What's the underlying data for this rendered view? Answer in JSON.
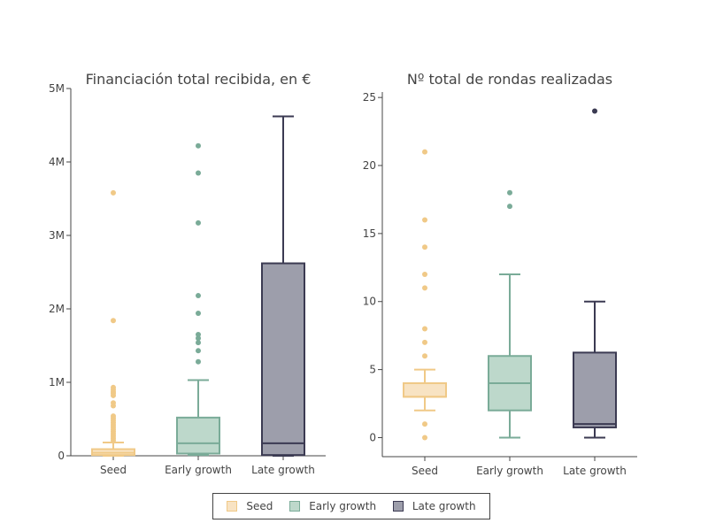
{
  "chart_data": [
    {
      "type": "box",
      "title": "Financiación total recibida, en €",
      "categories": [
        "Seed",
        "Early growth",
        "Late growth"
      ],
      "ylim": [
        0,
        5000000
      ],
      "yticks": [
        0,
        1000000,
        2000000,
        3000000,
        4000000,
        5000000
      ],
      "ytick_labels": [
        "0",
        "1M",
        "2M",
        "3M",
        "4M",
        "5M"
      ],
      "series": [
        {
          "name": "Seed",
          "stats": {
            "min": 0,
            "q1": 10000,
            "median": 40000,
            "q3": 90000,
            "max": 180000
          },
          "outliers": [
            3580000,
            1840000,
            930000,
            900000,
            870000,
            850000,
            820000,
            720000,
            680000,
            540000,
            510000,
            480000,
            450000,
            420000,
            390000,
            360000,
            330000,
            300000,
            270000,
            240000,
            210000
          ]
        },
        {
          "name": "Early growth",
          "stats": {
            "min": 10000,
            "q1": 30000,
            "median": 170000,
            "q3": 520000,
            "max": 1030000
          },
          "outliers": [
            4220000,
            3850000,
            3170000,
            2180000,
            1940000,
            1650000,
            1600000,
            1540000,
            1430000,
            1280000
          ]
        },
        {
          "name": "Late growth",
          "stats": {
            "min": 0,
            "q1": 10000,
            "median": 170000,
            "q3": 2620000,
            "max": 4620000
          },
          "outliers": []
        }
      ]
    },
    {
      "type": "box",
      "title": "Nº total de rondas realizadas",
      "categories": [
        "Seed",
        "Early growth",
        "Late growth"
      ],
      "ylim": [
        -1.4,
        25.4
      ],
      "yticks": [
        0,
        5,
        10,
        15,
        20,
        25
      ],
      "ytick_labels": [
        "0",
        "5",
        "10",
        "15",
        "20",
        "25"
      ],
      "series": [
        {
          "name": "Seed",
          "stats": {
            "min": 2,
            "q1": 3,
            "median": 3,
            "q3": 4,
            "max": 5
          },
          "outliers": [
            21,
            16,
            14,
            12,
            11,
            8,
            7,
            6,
            1,
            0
          ]
        },
        {
          "name": "Early growth",
          "stats": {
            "min": 0,
            "q1": 2,
            "median": 4,
            "q3": 6,
            "max": 12
          },
          "outliers": [
            18,
            17
          ]
        },
        {
          "name": "Late growth",
          "stats": {
            "min": 0,
            "q1": 0.75,
            "median": 1,
            "q3": 6.25,
            "max": 10
          },
          "outliers": [
            24
          ]
        }
      ]
    }
  ],
  "colors": {
    "Seed": {
      "fill": "#f8e3c3",
      "line": "#f0c987"
    },
    "Early growth": {
      "fill": "#bdd8cb",
      "line": "#7aab98"
    },
    "Late growth": {
      "fill": "#9d9eab",
      "line": "#3b3a52"
    }
  },
  "legend": {
    "items": [
      "Seed",
      "Early growth",
      "Late growth"
    ],
    "placement": "bottom-center"
  }
}
